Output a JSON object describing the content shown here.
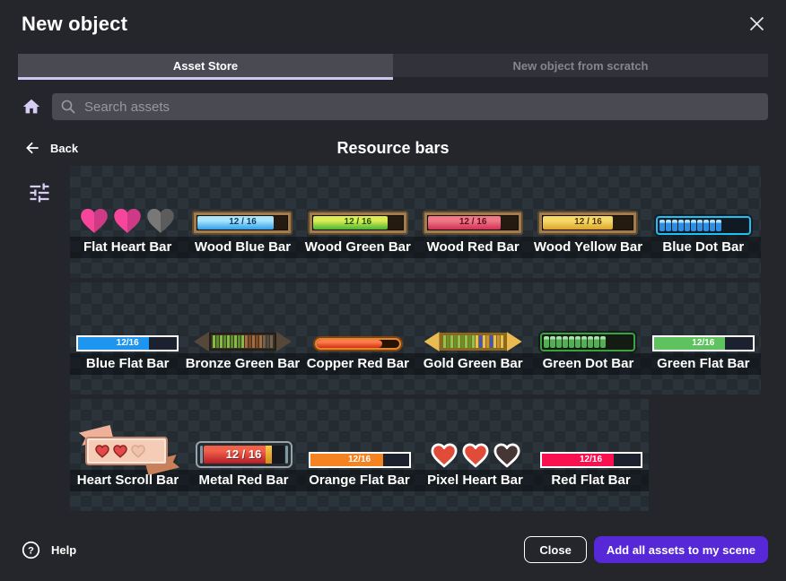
{
  "dialog": {
    "title": "New object"
  },
  "tabs": [
    {
      "label": "Asset Store",
      "active": true
    },
    {
      "label": "New object from scratch",
      "active": false
    }
  ],
  "search": {
    "placeholder": "Search assets"
  },
  "nav": {
    "back_label": "Back",
    "section_title": "Resource bars"
  },
  "footer": {
    "help_label": "Help",
    "close_label": "Close",
    "add_all_label": "Add all assets to my scene"
  },
  "colors": {
    "background": "#25252c",
    "tab_active_bg": "#4a4a53",
    "tab_inactive_bg": "#32323a",
    "tab_underline": "#cfc5f2",
    "accent_lavender": "#d6ccf4",
    "primary_button": "#5628d8",
    "checker_light": "#2b343b",
    "checker_dark": "#242c32"
  },
  "asset_rows": [
    {
      "items": [
        {
          "name": "Flat Heart Bar",
          "kind": "hearts-flat",
          "colors": {
            "full": "#f7459c",
            "full2": "#cf3a86",
            "empty": "#787878",
            "empty2": "#5c5c5c"
          }
        },
        {
          "name": "Wood Blue Bar",
          "kind": "wood",
          "value": "12 / 16",
          "fill_pct": 85,
          "colors": {
            "top": "#a8e4fb",
            "bottom": "#2f9fe8",
            "text": "#113e63"
          }
        },
        {
          "name": "Wood Green Bar",
          "kind": "wood",
          "value": "12 / 16",
          "fill_pct": 83,
          "colors": {
            "top": "#dcec52",
            "bottom": "#46b236",
            "text": "#1a550f"
          }
        },
        {
          "name": "Wood Red Bar",
          "kind": "wood",
          "value": "12 / 16",
          "fill_pct": 81,
          "colors": {
            "top": "#f07786",
            "bottom": "#cd3156",
            "text": "#5c0e1d"
          }
        },
        {
          "name": "Wood Yellow Bar",
          "kind": "wood",
          "value": "12 / 16",
          "fill_pct": 78,
          "colors": {
            "top": "#f6da69",
            "bottom": "#d8a42c",
            "text": "#523509"
          }
        },
        {
          "name": "Blue Dot Bar",
          "kind": "dot",
          "segments_filled": 10,
          "colors": {
            "border": "#1ec1f6",
            "seg_top": "#a9e4fa",
            "seg": "#2e8ee4",
            "track": "#101a22"
          }
        }
      ]
    },
    {
      "items": [
        {
          "name": "Blue Flat Bar",
          "kind": "flat",
          "value": "12/16",
          "fill_pct": 72,
          "colors": {
            "fill": "#1e96ef"
          }
        },
        {
          "name": "Bronze Green Bar",
          "kind": "arrow-seg",
          "colors": {
            "arrow": "#554739",
            "edge": "#261e14",
            "track": "#3b3226",
            "segments": [
              "#86bb45",
              "#5e8f2f",
              "#86bb45",
              "#5e8f2f",
              "#86bb45",
              "#5e8f2f",
              "#86bb45",
              "#5e8f2f",
              "#86bb45",
              "#a96b3b",
              "#7d4d29",
              "#a96b3b",
              "#7d4d29",
              "#a96b3b",
              "#6e6255",
              "#564a3d",
              "#6e6255"
            ]
          }
        },
        {
          "name": "Copper Red Bar",
          "kind": "copper",
          "fill_pct": 80,
          "colors": {
            "shell": "#e0872f",
            "edge": "#7e430f",
            "track": "#271204",
            "fill_top": "#ff7a4d",
            "fill_bottom": "#d22f12"
          }
        },
        {
          "name": "Gold Green Bar",
          "kind": "arrow-seg",
          "colors": {
            "arrow": "#e9bb50",
            "edge": "#8d681a",
            "track": "#8a681f",
            "segments": [
              "#8fc24a",
              "#649430",
              "#8fc24a",
              "#649430",
              "#8fc24a",
              "#649430",
              "#8fc24a",
              "#649430",
              "#8fc24a",
              "#e6c050",
              "#4054c4",
              "#e6c050",
              "#c89430",
              "#4054c4",
              "#e6c050",
              "#c89430",
              "#e6c050"
            ]
          }
        },
        {
          "name": "Green Dot Bar",
          "kind": "dot",
          "segments_filled": 10,
          "colors": {
            "border": "#3ba33b",
            "seg_top": "#a9e3a9",
            "seg": "#54ae54",
            "track": "#131b13"
          }
        },
        {
          "name": "Green Flat Bar",
          "kind": "flat",
          "value": "12/16",
          "fill_pct": 72,
          "colors": {
            "fill": "#5ec35e"
          }
        }
      ]
    },
    {
      "items": [
        {
          "name": "Heart Scroll Bar",
          "kind": "scroll",
          "colors": {
            "body": "#f5cdb6",
            "body_hi": "#fbe8da",
            "body_edge": "#c4826a",
            "ribbon_left": "#eeb098",
            "ribbon_right": "#c98059",
            "heart": "#e54848",
            "heart_edge": "#8a2424",
            "heart_empty": "#efc3aa",
            "heart_empty_edge": "#d9a78e"
          }
        },
        {
          "name": "Metal Red Bar",
          "kind": "metal",
          "value": "12 / 16",
          "fill_pct": 84,
          "colors": {
            "frame": "#99a1a9",
            "body": "#242b31",
            "cap": "#7f98a6",
            "fill_top": "#f16049",
            "fill_bottom": "#b41d28",
            "amber_top": "#f8c846",
            "amber_bottom": "#d88c18",
            "track": "#15191d"
          }
        },
        {
          "name": "Orange Flat Bar",
          "kind": "flat",
          "value": "12/16",
          "fill_pct": 74,
          "colors": {
            "fill": "#f58321"
          }
        },
        {
          "name": "Pixel Heart Bar",
          "kind": "hearts-pixel",
          "colors": {
            "full": "#e14b38",
            "empty": "#473636",
            "outline": "#ffffff"
          }
        },
        {
          "name": "Red Flat Bar",
          "kind": "flat",
          "value": "12/16",
          "fill_pct": 73,
          "colors": {
            "fill": "#f8104f"
          }
        }
      ]
    }
  ]
}
